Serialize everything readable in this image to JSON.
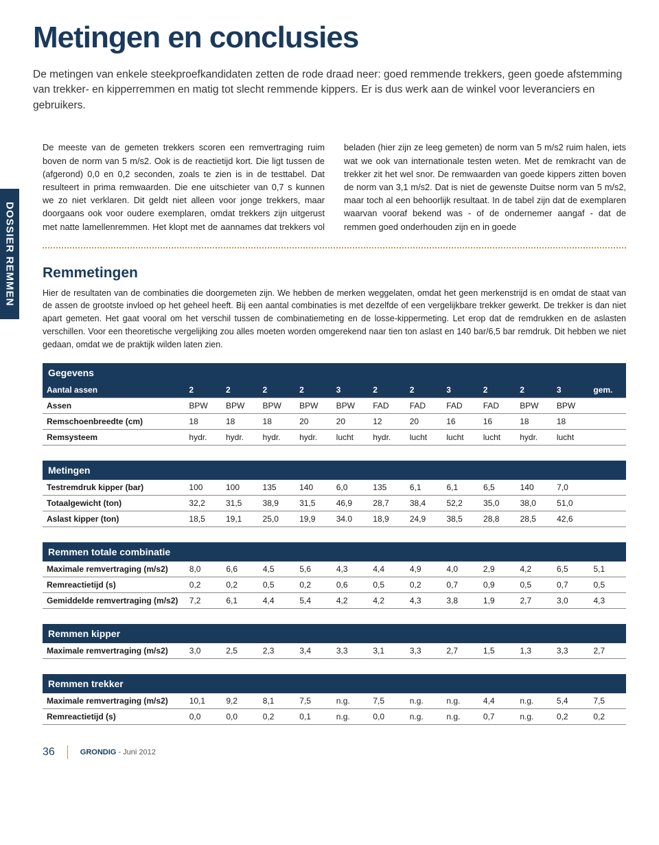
{
  "colors": {
    "primary": "#1a3a5c",
    "accent": "#d08a4a",
    "text": "#1a1a1a",
    "background": "#ffffff",
    "rule": "#888888"
  },
  "typography": {
    "title_size_pt": 44,
    "intro_size_pt": 15.5,
    "body_size_pt": 12.8,
    "table_size_pt": 12
  },
  "sidebar_label": "DOSSIER REMMEN",
  "title": "Metingen en conclusies",
  "intro": "De metingen van enkele steekproefkandidaten zetten de rode draad neer: goed remmende trekkers, geen goede afstemming van trekker- en kipperremmen en matig tot slecht remmende kippers. Er is dus werk aan de winkel voor leveranciers en gebruikers.",
  "body_text": "De meeste van de gemeten trekkers scoren een remvertraging ruim boven de norm van 5 m/s2. Ook is de reactietijd kort. Die ligt tussen de (afgerond) 0,0 en 0,2 seconden, zoals te zien is in de testtabel. Dat resulteert in prima remwaarden. Die ene uitschieter van 0,7 s kunnen we zo niet verklaren. Dit geldt niet alleen voor jonge trekkers, maar doorgaans ook voor oudere exemplaren, omdat trekkers zijn uitgerust met natte lamellenremmen. Het klopt met de aannames dat trekkers vol beladen (hier zijn ze leeg gemeten) de norm van 5 m/s2 ruim halen, iets wat we ook van internationale testen weten. Met de remkracht van de trekker zit het wel snor. De remwaarden van goede kippers zitten boven de norm van 3,1 m/s2. Dat is niet de gewenste Duitse norm van 5 m/s2, maar toch al een behoorlijk resultaat. In de tabel zijn dat de exemplaren waarvan vooraf bekend was - of de ondernemer aangaf - dat de remmen goed onderhouden zijn en in goede",
  "remmetingen": {
    "heading": "Remmetingen",
    "intro": "Hier de resultaten van de combinaties die doorgemeten zijn. We hebben de merken weggelaten, omdat het geen merkenstrijd is en omdat de staat van de assen de grootste invloed op het geheel heeft. Bij een aantal combinaties is met dezelfde of een vergelijkbare trekker gewerkt. De trekker is dan niet apart gemeten. Het gaat vooral om het verschil tussen de combinatiemeting en de losse-kippermeting. Let erop dat de remdrukken en de aslasten verschillen. Voor een theoretische vergelijking zou alles moeten worden omgerekend naar tien ton aslast en 140 bar/6,5 bar remdruk. Dit hebben we niet gedaan, omdat we de praktijk wilden laten zien."
  },
  "tables": {
    "gegevens": {
      "title": "Gegevens",
      "rows": [
        {
          "label": "Aantal assen",
          "vals": [
            "2",
            "2",
            "2",
            "2",
            "3",
            "2",
            "2",
            "3",
            "2",
            "2",
            "3",
            "gem."
          ]
        },
        {
          "label": "Assen",
          "vals": [
            "BPW",
            "BPW",
            "BPW",
            "BPW",
            "BPW",
            "FAD",
            "FAD",
            "FAD",
            "FAD",
            "BPW",
            "BPW",
            ""
          ]
        },
        {
          "label": "Remschoenbreedte (cm)",
          "vals": [
            "18",
            "18",
            "18",
            "20",
            "20",
            "12",
            "20",
            "16",
            "16",
            "18",
            "18",
            ""
          ]
        },
        {
          "label": "Remsysteem",
          "vals": [
            "hydr.",
            "hydr.",
            "hydr.",
            "hydr.",
            "lucht",
            "hydr.",
            "lucht",
            "lucht",
            "lucht",
            "hydr.",
            "lucht",
            ""
          ]
        }
      ]
    },
    "metingen": {
      "title": "Metingen",
      "rows": [
        {
          "label": "Testremdruk kipper (bar)",
          "vals": [
            "100",
            "100",
            "135",
            "140",
            "6,0",
            "135",
            "6,1",
            "6,1",
            "6,5",
            "140",
            "7,0",
            ""
          ]
        },
        {
          "label": "Totaalgewicht (ton)",
          "vals": [
            "32,2",
            "31,5",
            "38,9",
            "31,5",
            "46,9",
            "28,7",
            "38,4",
            "52,2",
            "35,0",
            "38,0",
            "51,0",
            ""
          ]
        },
        {
          "label": "Aslast kipper (ton)",
          "vals": [
            "18,5",
            "19,1",
            "25,0",
            "19,9",
            "34.0",
            "18,9",
            "24,9",
            "38,5",
            "28,8",
            "28,5",
            "42,6",
            ""
          ]
        }
      ]
    },
    "remmen_totale": {
      "title": "Remmen totale combinatie",
      "rows": [
        {
          "label": "Maximale remvertraging (m/s2)",
          "vals": [
            "8,0",
            "6,6",
            "4,5",
            "5,6",
            "4,3",
            "4,4",
            "4,9",
            "4,0",
            "2,9",
            "4,2",
            "6,5",
            "5,1"
          ]
        },
        {
          "label": "Remreactietijd (s)",
          "vals": [
            "0,2",
            "0,2",
            "0,5",
            "0,2",
            "0,6",
            "0,5",
            "0,2",
            "0,7",
            "0,9",
            "0,5",
            "0,7",
            "0,5"
          ]
        },
        {
          "label": "Gemiddelde remvertraging (m/s2)",
          "vals": [
            "7,2",
            "6,1",
            "4,4",
            "5,4",
            "4,2",
            "4,2",
            "4,3",
            "3,8",
            "1,9",
            "2,7",
            "3,0",
            "4,3"
          ]
        }
      ]
    },
    "remmen_kipper": {
      "title": "Remmen kipper",
      "rows": [
        {
          "label": "Maximale remvertraging (m/s2)",
          "vals": [
            "3,0",
            "2,5",
            "2,3",
            "3,4",
            "3,3",
            "3,1",
            "3,3",
            "2,7",
            "1,5",
            "1,3",
            "3,3",
            "2,7"
          ]
        }
      ]
    },
    "remmen_trekker": {
      "title": "Remmen trekker",
      "rows": [
        {
          "label": "Maximale remvertraging (m/s2)",
          "vals": [
            "10,1",
            "9,2",
            "8,1",
            "7,5",
            "n.g.",
            "7,5",
            "n.g.",
            "n.g.",
            "4,4",
            "n.g.",
            "5,4",
            "7,5"
          ]
        },
        {
          "label": "Remreactietijd (s)",
          "vals": [
            "0,0",
            "0,0",
            "0,2",
            "0,1",
            "n.g.",
            "0,0",
            "n.g.",
            "n.g.",
            "0,7",
            "n.g.",
            "0,2",
            "0,2"
          ]
        }
      ]
    }
  },
  "footer": {
    "page": "36",
    "magazine": "GRONDIG",
    "issue": " - Juni 2012"
  }
}
